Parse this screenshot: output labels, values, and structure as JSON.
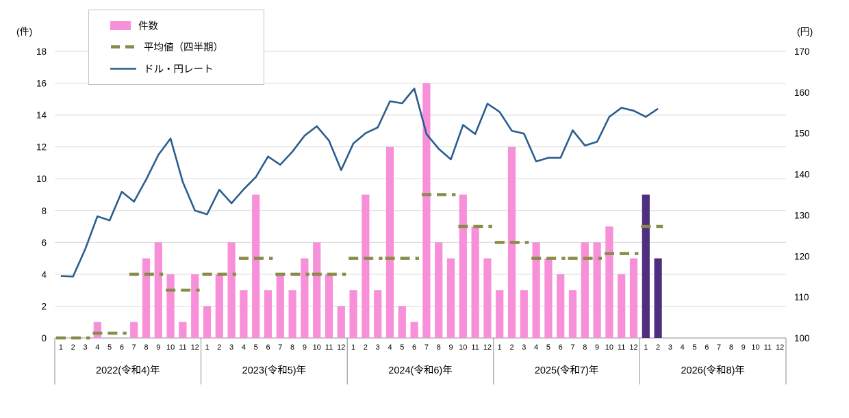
{
  "chart_data": {
    "type": "combo-bar-line",
    "title": "",
    "left_axis": {
      "unit_label": "(件)",
      "min": 0,
      "max": 18,
      "tick_step": 2,
      "ticks": [
        "18",
        "16",
        "14",
        "12",
        "10",
        "8",
        "6",
        "4",
        "2",
        "0"
      ]
    },
    "right_axis": {
      "unit_label": "(円)",
      "min": 100,
      "max": 170,
      "tick_step": 10,
      "ticks": [
        "170",
        "160",
        "150",
        "140",
        "130",
        "120",
        "110",
        "100"
      ]
    },
    "month_labels": [
      "1",
      "2",
      "3",
      "4",
      "5",
      "6",
      "7",
      "8",
      "9",
      "10",
      "11",
      "12"
    ],
    "grid": true,
    "grid_color": "#d9d9d9",
    "axis_color": "#8c8c8c",
    "legend_position": "top-left",
    "series": [
      {
        "name": "件数",
        "type": "bar",
        "axis": "left",
        "color": "#f78fd9"
      },
      {
        "name": "平均値（四半期）",
        "type": "dashed-segments",
        "axis": "left",
        "color": "#8a8b4a"
      },
      {
        "name": "ドル・円レート",
        "type": "line",
        "axis": "right",
        "color": "#2a5d8e"
      }
    ],
    "years": [
      {
        "label": "2022(令和4)年",
        "counts": [
          0,
          0,
          0,
          1,
          0,
          0,
          1,
          5,
          6,
          4,
          1,
          4
        ],
        "quarterly_avg": [
          0,
          0.3,
          4,
          3
        ],
        "rates": [
          115.1,
          115.0,
          121.7,
          129.7,
          128.7,
          135.7,
          133.3,
          138.7,
          144.7,
          148.7,
          138.1,
          131.1
        ]
      },
      {
        "label": "2023(令和5)年",
        "counts": [
          2,
          4,
          6,
          3,
          9,
          3,
          4,
          3,
          5,
          6,
          4,
          2
        ],
        "quarterly_avg": [
          4,
          5,
          4,
          4
        ],
        "rates": [
          130.2,
          136.2,
          132.9,
          136.3,
          139.3,
          144.3,
          142.3,
          145.5,
          149.4,
          151.7,
          148.2,
          141.0
        ]
      },
      {
        "label": "2024(令和6)年",
        "counts": [
          3,
          9,
          3,
          12,
          2,
          1,
          16,
          6,
          5,
          9,
          7,
          5
        ],
        "quarterly_avg": [
          5,
          5,
          9,
          7
        ],
        "rates": [
          147.5,
          150.0,
          151.4,
          157.8,
          157.3,
          160.9,
          149.8,
          146.2,
          143.6,
          152.0,
          149.8,
          157.2
        ]
      },
      {
        "label": "2025(令和7)年",
        "counts": [
          3,
          12,
          3,
          6,
          5,
          4,
          3,
          6,
          6,
          7,
          4,
          5
        ],
        "quarterly_avg": [
          6,
          5,
          5,
          5.3
        ],
        "rates": [
          155.2,
          150.6,
          149.9,
          143.1,
          144.0,
          144.0,
          150.7,
          147.0,
          147.9,
          154.0,
          156.2,
          155.5
        ]
      },
      {
        "label": "2026(令和8)年",
        "counts": [
          9,
          5,
          null,
          null,
          null,
          null,
          null,
          null,
          null,
          null,
          null,
          null
        ],
        "quarterly_avg": [
          7,
          null,
          null,
          null
        ],
        "bar_color": "#4f2d7f",
        "rates": [
          154.0,
          156.0,
          null,
          null,
          null,
          null,
          null,
          null,
          null,
          null,
          null,
          null
        ]
      }
    ]
  },
  "legend": {
    "items": [
      {
        "label": "件数"
      },
      {
        "label": "平均値（四半期）"
      },
      {
        "label": "ドル・円レート"
      }
    ]
  }
}
